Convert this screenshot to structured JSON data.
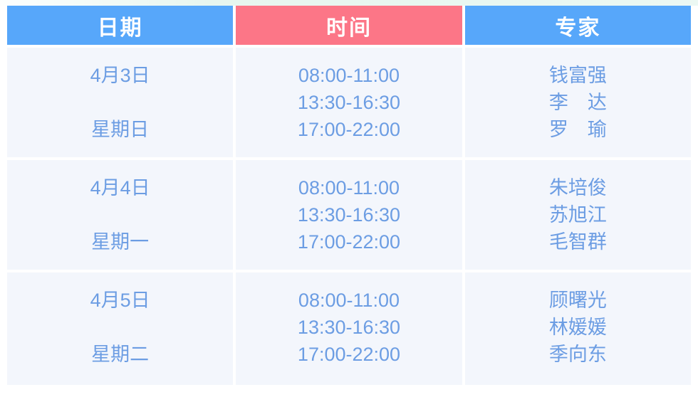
{
  "page": {
    "top_strip_color": "#e9f7f1",
    "background_color": "#ffffff"
  },
  "table": {
    "colors": {
      "header_blue": "#57a7fa",
      "header_pink": "#fc7687",
      "header_text": "#ffffff",
      "row_background": "#f3f6fc",
      "cell_text": "#6c9de3"
    },
    "headers": [
      {
        "label": "日期"
      },
      {
        "label": "时间"
      },
      {
        "label": "专家"
      }
    ],
    "rows": [
      {
        "date": "4月3日",
        "weekday": "星期日",
        "times": [
          "08:00-11:00",
          "13:30-16:30",
          "17:00-22:00"
        ],
        "experts": [
          "钱富强",
          "李　达",
          "罗　瑜"
        ]
      },
      {
        "date": "4月4日",
        "weekday": "星期一",
        "times": [
          "08:00-11:00",
          "13:30-16:30",
          "17:00-22:00"
        ],
        "experts": [
          "朱培俊",
          "苏旭江",
          "毛智群"
        ]
      },
      {
        "date": "4月5日",
        "weekday": "星期二",
        "times": [
          "08:00-11:00",
          "13:30-16:30",
          "17:00-22:00"
        ],
        "experts": [
          "顾曙光",
          "林媛媛",
          "季向东"
        ]
      }
    ]
  }
}
